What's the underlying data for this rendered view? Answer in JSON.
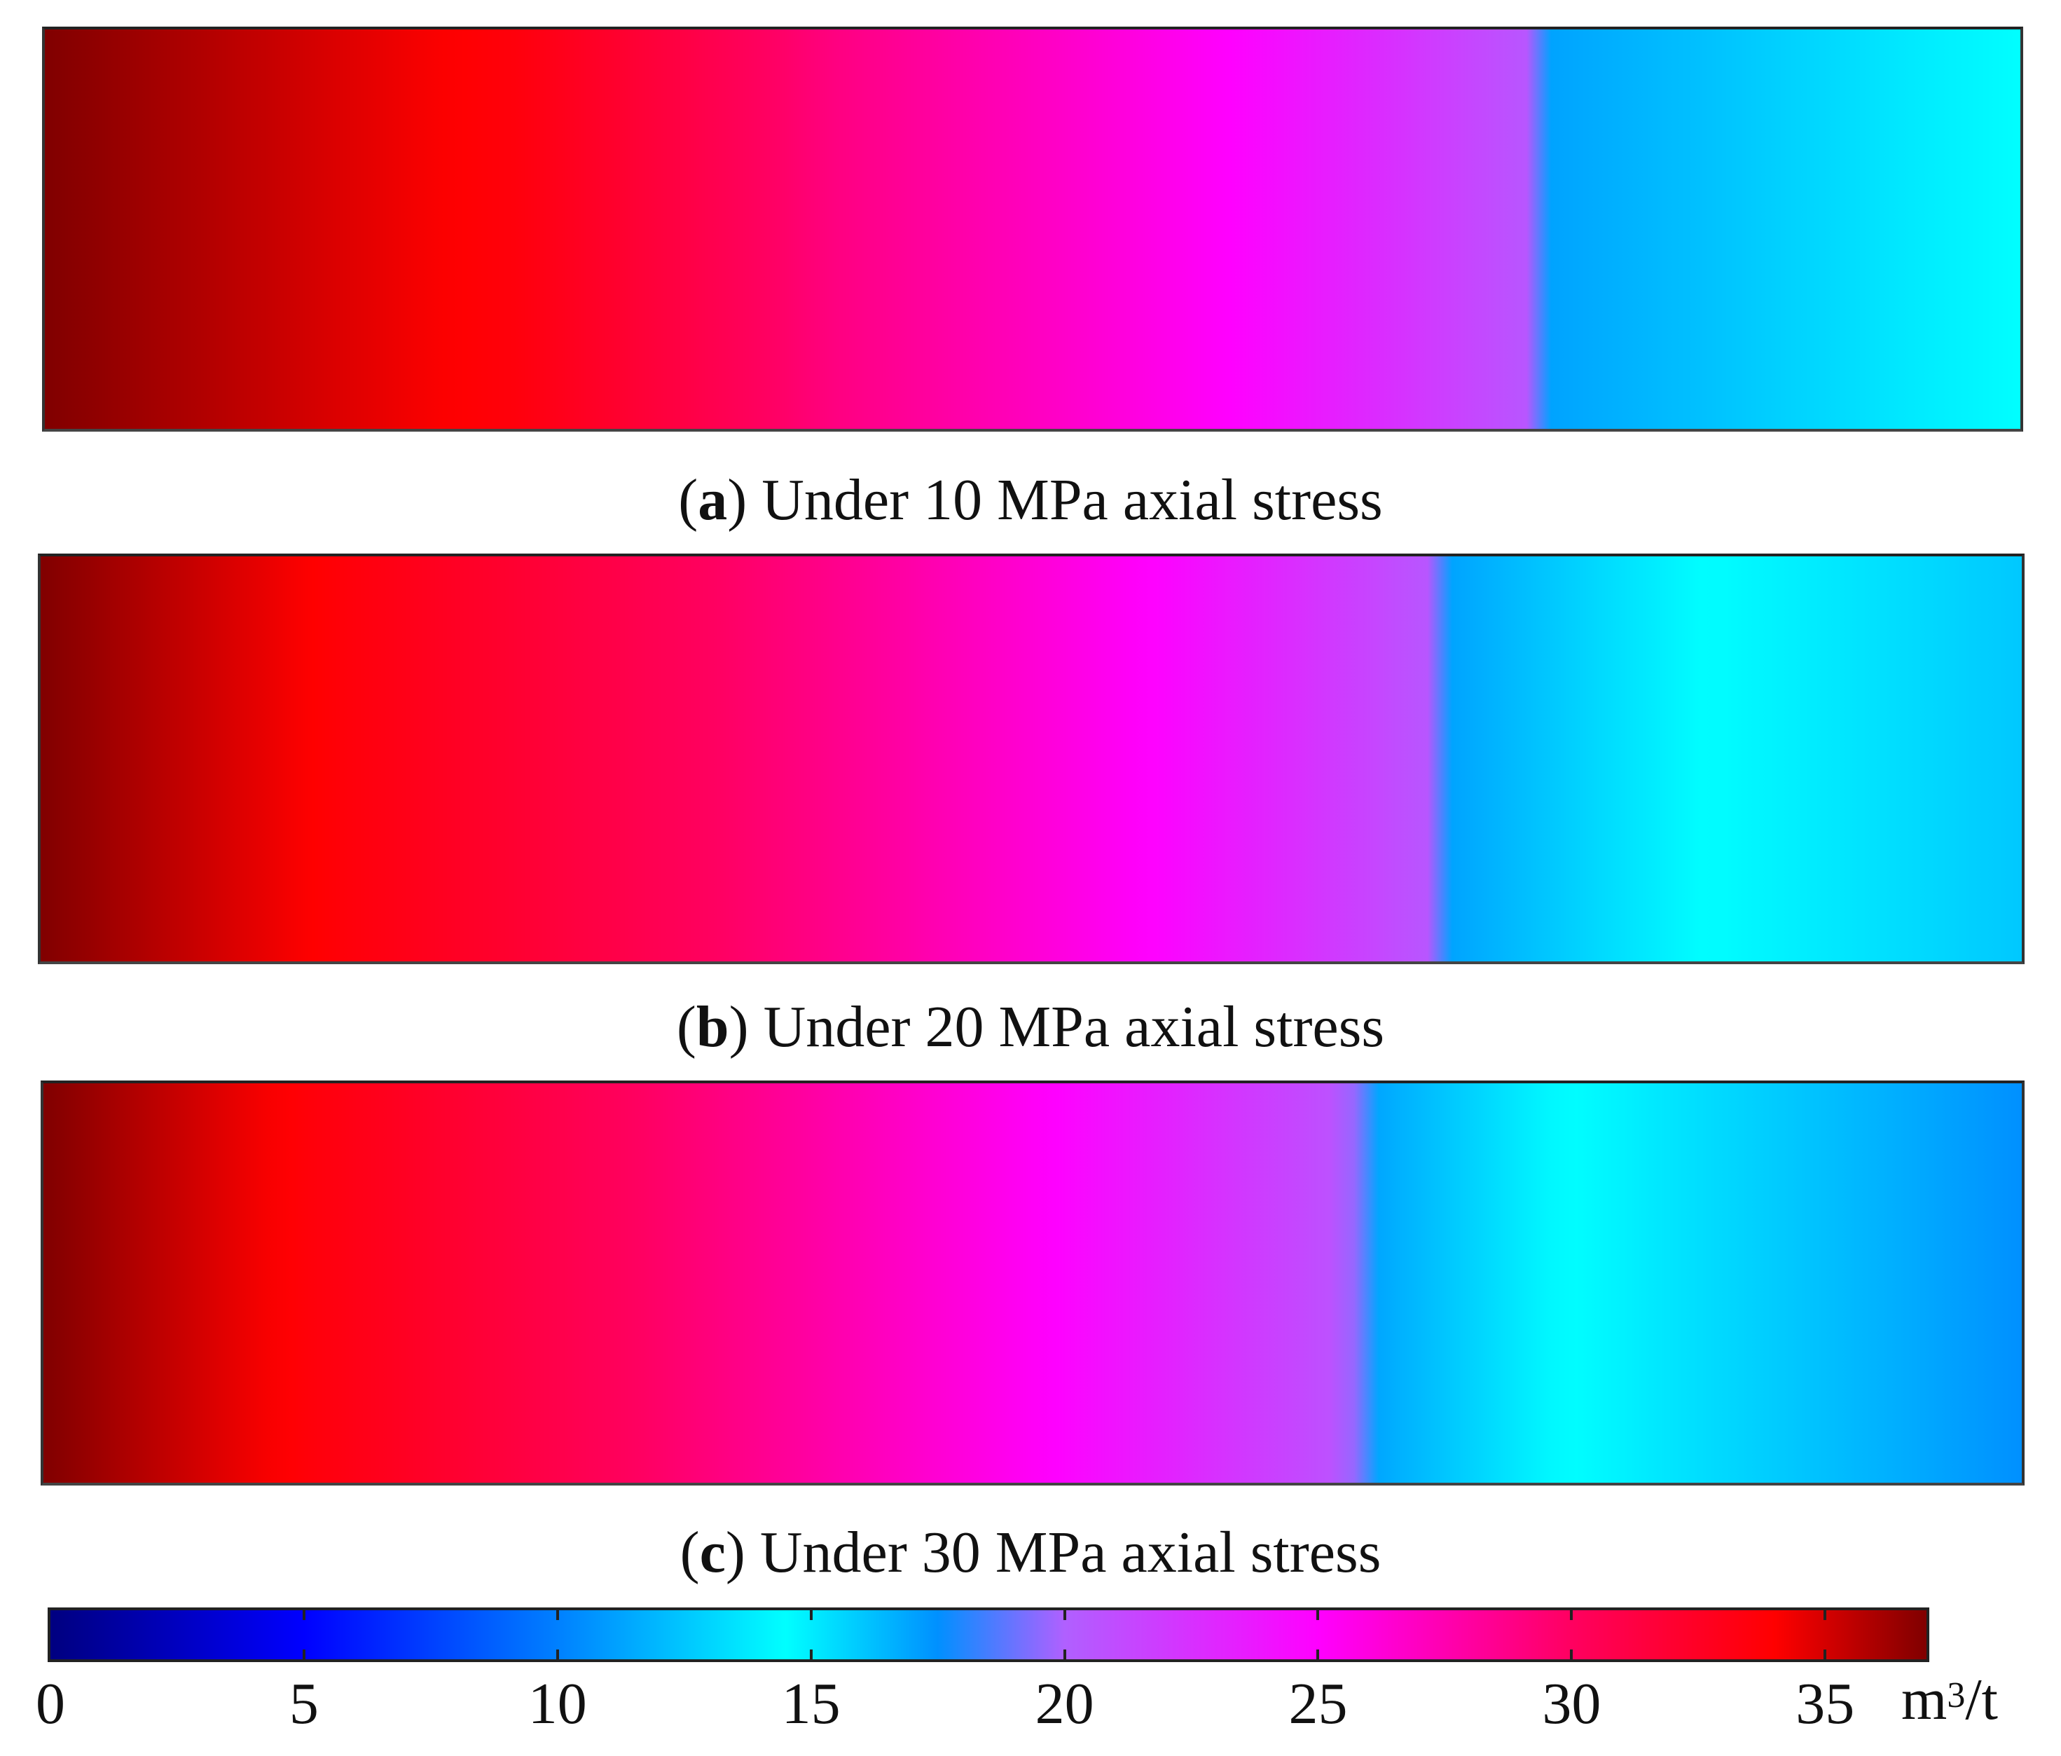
{
  "chart_data": {
    "type": "heatmap",
    "colorbar": {
      "min": 0,
      "max": 37,
      "ticks": [
        0,
        5,
        10,
        15,
        20,
        25,
        30,
        35
      ],
      "tick_labels": [
        "0",
        "5",
        "10",
        "15",
        "20",
        "25",
        "30",
        "35"
      ],
      "unit_base": "m",
      "unit_exp": "3",
      "unit_tail": "/t",
      "colormap": [
        {
          "v": 0,
          "color": "#000080"
        },
        {
          "v": 5,
          "color": "#0000ff"
        },
        {
          "v": 10,
          "color": "#0080ff"
        },
        {
          "v": 14.5,
          "color": "#00ffff"
        },
        {
          "v": 17.5,
          "color": "#0090ff"
        },
        {
          "v": 20,
          "color": "#b060ff"
        },
        {
          "v": 25,
          "color": "#ff00ff"
        },
        {
          "v": 30,
          "color": "#ff0060"
        },
        {
          "v": 34,
          "color": "#ff0000"
        },
        {
          "v": 37,
          "color": "#800000"
        }
      ]
    },
    "panels": [
      {
        "letter": "a",
        "caption": "Under 10 MPa axial stress",
        "profile": [
          {
            "pos": 0.0,
            "value": 37
          },
          {
            "pos": 0.24,
            "value": 33.5
          },
          {
            "pos": 0.4,
            "value": 29
          },
          {
            "pos": 0.6,
            "value": 25
          },
          {
            "pos": 0.75,
            "value": 20.5
          },
          {
            "pos": 0.76,
            "value": 17
          },
          {
            "pos": 1.0,
            "value": 14.5
          }
        ]
      },
      {
        "letter": "b",
        "caption": "Under 20 MPa axial stress",
        "profile": [
          {
            "pos": 0.0,
            "value": 37
          },
          {
            "pos": 0.16,
            "value": 33.5
          },
          {
            "pos": 0.34,
            "value": 30
          },
          {
            "pos": 0.56,
            "value": 25
          },
          {
            "pos": 0.7,
            "value": 20.5
          },
          {
            "pos": 0.71,
            "value": 17
          },
          {
            "pos": 0.84,
            "value": 14.5
          },
          {
            "pos": 1.0,
            "value": 16
          }
        ]
      },
      {
        "letter": "c",
        "caption": "Under 30 MPa axial stress",
        "profile": [
          {
            "pos": 0.0,
            "value": 37
          },
          {
            "pos": 0.14,
            "value": 33.5
          },
          {
            "pos": 0.3,
            "value": 30
          },
          {
            "pos": 0.51,
            "value": 25
          },
          {
            "pos": 0.66,
            "value": 20.5
          },
          {
            "pos": 0.67,
            "value": 17
          },
          {
            "pos": 0.77,
            "value": 14.5
          },
          {
            "pos": 1.0,
            "value": 17.5
          }
        ]
      }
    ]
  }
}
